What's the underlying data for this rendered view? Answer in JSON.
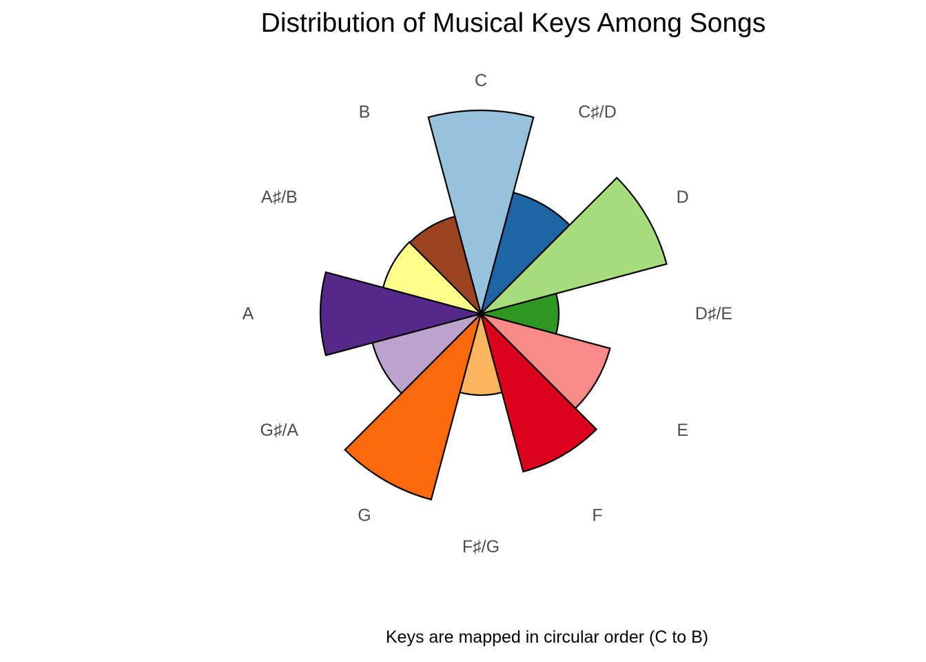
{
  "chart_data": {
    "type": "bar",
    "coord": "polar",
    "title": "Distribution of Musical Keys Among Songs",
    "caption": "Keys are mapped in circular order (C to B)",
    "xlabel": "",
    "ylabel": "",
    "grid": false,
    "legend": "none",
    "categories": [
      "C",
      "C♯/D",
      "D",
      "D♯/E",
      "E",
      "F",
      "F♯/G",
      "G",
      "G♯/A",
      "A",
      "A♯/B",
      "B"
    ],
    "values": [
      295,
      182,
      279,
      113,
      194,
      237,
      118,
      279,
      163,
      233,
      147,
      146
    ],
    "colors": [
      "#97C2DC",
      "#1F65A6",
      "#A6DC7B",
      "#2E9622",
      "#F88A8A",
      "#DB001C",
      "#FCB45F",
      "#FC690B",
      "#BDA2CC",
      "#542989",
      "#FDFD8A",
      "#9B4321"
    ]
  }
}
